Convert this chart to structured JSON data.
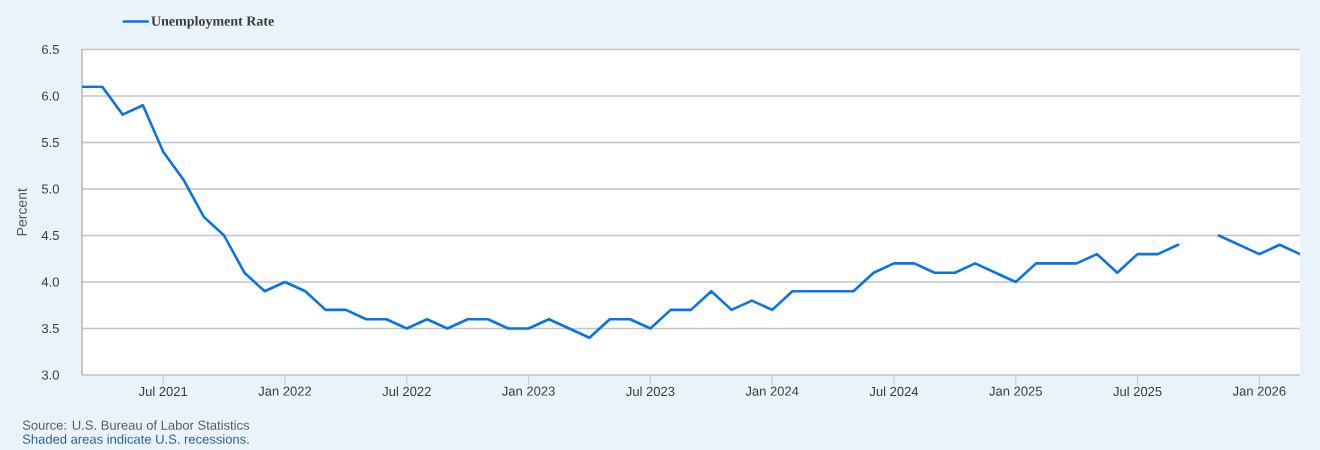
{
  "chart_data": {
    "type": "line",
    "ylabel": "Percent",
    "legend": "top left",
    "grid": "y",
    "x": [
      "2021-03",
      "2021-04",
      "2021-05",
      "2021-06",
      "2021-07",
      "2021-08",
      "2021-09",
      "2021-10",
      "2021-11",
      "2021-12",
      "2022-01",
      "2022-02",
      "2022-03",
      "2022-04",
      "2022-05",
      "2022-06",
      "2022-07",
      "2022-08",
      "2022-09",
      "2022-10",
      "2022-11",
      "2022-12",
      "2023-01",
      "2023-02",
      "2023-03",
      "2023-04",
      "2023-05",
      "2023-06",
      "2023-07",
      "2023-08",
      "2023-09",
      "2023-10",
      "2023-11",
      "2023-12",
      "2024-01",
      "2024-02",
      "2024-03",
      "2024-04",
      "2024-05",
      "2024-06",
      "2024-07",
      "2024-08",
      "2024-09",
      "2024-10",
      "2024-11",
      "2024-12",
      "2025-01",
      "2025-02",
      "2025-03",
      "2025-04",
      "2025-05",
      "2025-06",
      "2025-07",
      "2025-08",
      "2025-09",
      "2025-10",
      "2025-11",
      "2025-12",
      "2026-01",
      "2026-02",
      "2026-03"
    ],
    "series": [
      {
        "name": "Unemployment Rate",
        "color": "#0a73e6",
        "values": [
          6.1,
          6.1,
          5.8,
          5.9,
          5.4,
          5.1,
          4.7,
          4.5,
          4.1,
          3.9,
          4.0,
          3.9,
          3.7,
          3.7,
          3.6,
          3.6,
          3.5,
          3.6,
          3.5,
          3.6,
          3.6,
          3.5,
          3.5,
          3.6,
          3.5,
          3.4,
          3.6,
          3.6,
          3.5,
          3.7,
          3.7,
          3.9,
          3.7,
          3.8,
          3.7,
          3.9,
          3.9,
          3.9,
          3.9,
          4.1,
          4.2,
          4.2,
          4.1,
          4.1,
          4.2,
          4.1,
          4.0,
          4.2,
          4.2,
          4.2,
          4.3,
          4.1,
          4.3,
          4.3,
          4.4,
          null,
          4.5,
          4.4,
          4.3,
          4.4,
          4.3
        ]
      }
    ],
    "xlim": [
      "2021-03",
      "2026-03"
    ],
    "xticks": [
      {
        "value": "2021-07",
        "label": "Jul 2021"
      },
      {
        "value": "2022-01",
        "label": "Jan 2022"
      },
      {
        "value": "2022-07",
        "label": "Jul 2022"
      },
      {
        "value": "2023-01",
        "label": "Jan 2023"
      },
      {
        "value": "2023-07",
        "label": "Jul 2023"
      },
      {
        "value": "2024-01",
        "label": "Jan 2024"
      },
      {
        "value": "2024-07",
        "label": "Jul 2024"
      },
      {
        "value": "2025-01",
        "label": "Jan 2025"
      },
      {
        "value": "2025-07",
        "label": "Jul 2025"
      },
      {
        "value": "2026-01",
        "label": "Jan 2026"
      }
    ],
    "ylim": [
      3.0,
      6.5
    ],
    "yticks": [
      {
        "value": 3.0,
        "label": "3.0"
      },
      {
        "value": 3.5,
        "label": "3.5"
      },
      {
        "value": 4.0,
        "label": "4.0"
      },
      {
        "value": 4.5,
        "label": "4.5"
      },
      {
        "value": 5.0,
        "label": "5.0"
      },
      {
        "value": 5.5,
        "label": "5.5"
      },
      {
        "value": 6.0,
        "label": "6.0"
      },
      {
        "value": 6.5,
        "label": "6.5"
      }
    ],
    "annotations": [
      "Source: U.S. Bureau of Labor Statistics",
      "Shaded areas indicate U.S. recessions."
    ]
  }
}
